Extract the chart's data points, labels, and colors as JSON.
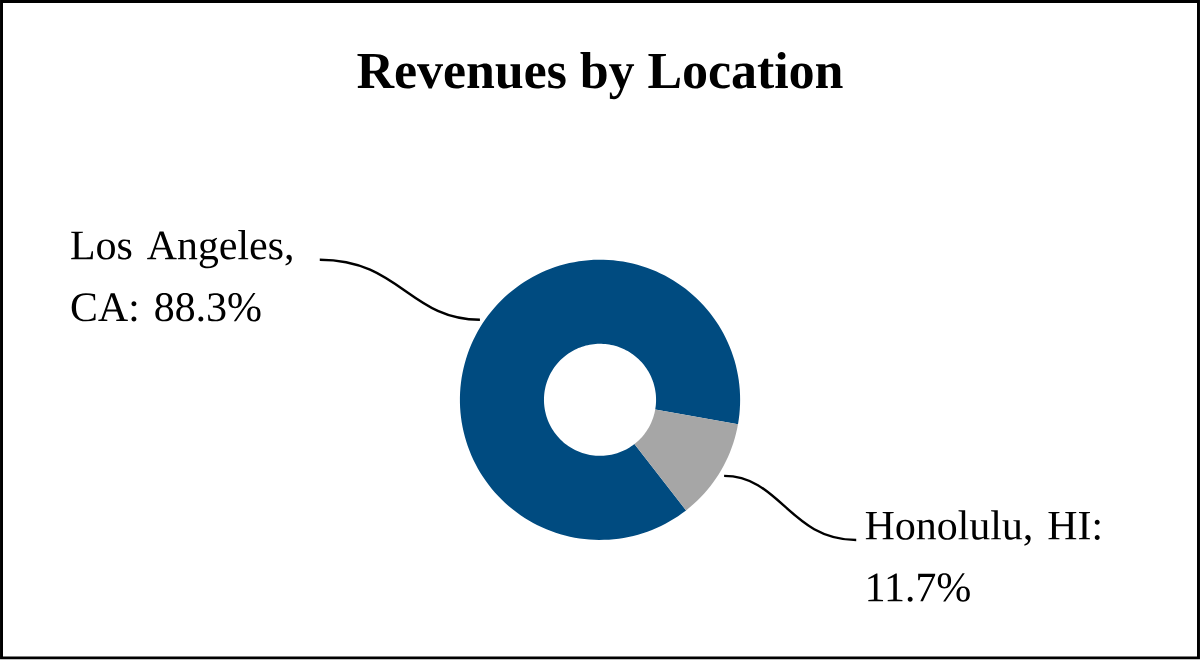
{
  "chart_data": {
    "type": "donut",
    "title": "Revenues by Location",
    "categories": [
      "Los Angeles, CA",
      "Honolulu, HI"
    ],
    "values": [
      88.3,
      11.7
    ],
    "colors": [
      "#004b80",
      "#a6a6a6"
    ],
    "value_labels": [
      ": 88.3%",
      ": 11.7%"
    ]
  }
}
